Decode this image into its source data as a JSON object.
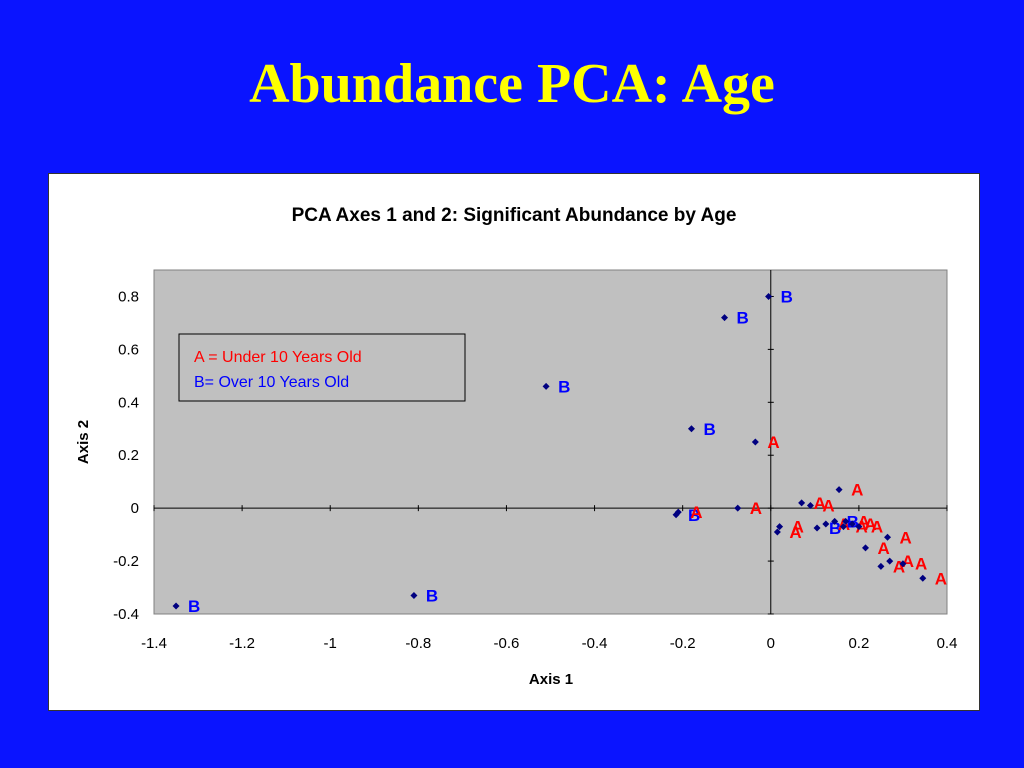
{
  "slide": {
    "title": "Abundance PCA: Age"
  },
  "colors": {
    "background": "#0a14ff",
    "title": "#ffff00",
    "plot_area": "#c0c0c0",
    "group_a": "#ff0000",
    "group_b": "#0000ff",
    "marker": "#000080"
  },
  "chart_data": {
    "type": "scatter",
    "title": "PCA Axes 1 and 2: Significant Abundance by Age",
    "xlabel": "Axis 1",
    "ylabel": "Axis 2",
    "xlim": [
      -1.4,
      0.4
    ],
    "ylim": [
      -0.4,
      0.9
    ],
    "xticks": [
      "-1.4",
      "-1.2",
      "-1",
      "-0.8",
      "-0.6",
      "-0.4",
      "-0.2",
      "0",
      "0.2",
      "0.4"
    ],
    "yticks": [
      "-0.4",
      "-0.2",
      "0",
      "0.2",
      "0.4",
      "0.6",
      "0.8"
    ],
    "grid": false,
    "legend": {
      "placement": "top-left",
      "entries": [
        {
          "text": "A = Under 10 Years Old",
          "group": "A"
        },
        {
          "text": "B= Over 10 Years Old",
          "group": "B"
        }
      ]
    },
    "points": [
      {
        "x": -1.35,
        "y": -0.37,
        "label": "B"
      },
      {
        "x": -0.81,
        "y": -0.33,
        "label": "B"
      },
      {
        "x": -0.51,
        "y": 0.46,
        "label": "B"
      },
      {
        "x": -0.18,
        "y": 0.3,
        "label": "B"
      },
      {
        "x": -0.105,
        "y": 0.72,
        "label": "B"
      },
      {
        "x": -0.005,
        "y": 0.8,
        "label": "B"
      },
      {
        "x": -0.215,
        "y": -0.025,
        "label": "B"
      },
      {
        "x": -0.21,
        "y": -0.015,
        "label": "A"
      },
      {
        "x": -0.075,
        "y": 0.0,
        "label": "A"
      },
      {
        "x": -0.035,
        "y": 0.25,
        "label": "A"
      },
      {
        "x": 0.015,
        "y": -0.09,
        "label": "A"
      },
      {
        "x": 0.02,
        "y": -0.07,
        "label": "A"
      },
      {
        "x": 0.07,
        "y": 0.02,
        "label": "A"
      },
      {
        "x": 0.09,
        "y": 0.01,
        "label": "A"
      },
      {
        "x": 0.105,
        "y": -0.075,
        "label": "B"
      },
      {
        "x": 0.125,
        "y": -0.06,
        "label": "A"
      },
      {
        "x": 0.145,
        "y": -0.05,
        "label": "B"
      },
      {
        "x": 0.155,
        "y": 0.07,
        "label": "A"
      },
      {
        "x": 0.165,
        "y": -0.07,
        "label": "A"
      },
      {
        "x": 0.17,
        "y": -0.05,
        "label": "A"
      },
      {
        "x": 0.185,
        "y": -0.06,
        "label": "A"
      },
      {
        "x": 0.2,
        "y": -0.07,
        "label": "A"
      },
      {
        "x": 0.215,
        "y": -0.15,
        "label": "A"
      },
      {
        "x": 0.25,
        "y": -0.22,
        "label": "A"
      },
      {
        "x": 0.265,
        "y": -0.11,
        "label": "A"
      },
      {
        "x": 0.27,
        "y": -0.2,
        "label": "A"
      },
      {
        "x": 0.3,
        "y": -0.21,
        "label": "A"
      },
      {
        "x": 0.345,
        "y": -0.265,
        "label": "A"
      }
    ]
  }
}
